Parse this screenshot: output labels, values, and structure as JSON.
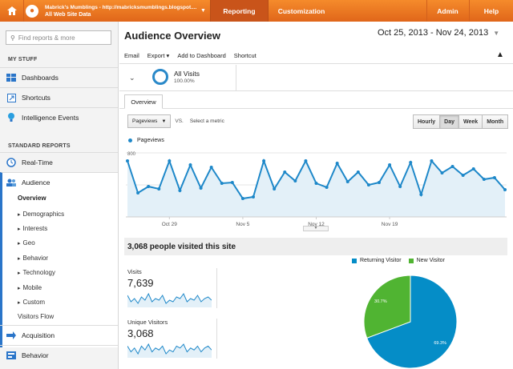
{
  "topbar": {
    "site_line1": "Mabrick's Mumblings - http://mabricksmumblings.blogspot....",
    "site_line2": "All Web Site Data",
    "nav": {
      "reporting": "Reporting",
      "customization": "Customization",
      "admin": "Admin",
      "help": "Help"
    },
    "accent": "#e8701f"
  },
  "sidebar": {
    "search_placeholder": "Find reports & more",
    "my_stuff": "MY STUFF",
    "dashboards": "Dashboards",
    "shortcuts": "Shortcuts",
    "intelligence": "Intelligence Events",
    "standard_reports": "STANDARD REPORTS",
    "realtime": "Real-Time",
    "audience": "Audience",
    "audience_items": {
      "overview": "Overview",
      "demographics": "Demographics",
      "interests": "Interests",
      "geo": "Geo",
      "behavior": "Behavior",
      "technology": "Technology",
      "mobile": "Mobile",
      "custom": "Custom",
      "visitors_flow": "Visitors Flow"
    },
    "acquisition": "Acquisition",
    "behavior": "Behavior"
  },
  "main": {
    "title": "Audience Overview",
    "date_range": "Oct 25, 2013 - Nov 24, 2013",
    "toolbar": {
      "email": "Email",
      "export": "Export",
      "add_dashboard": "Add to Dashboard",
      "shortcut": "Shortcut"
    },
    "segment": {
      "name": "All Visits",
      "percent": "100.00%"
    },
    "tab": "Overview",
    "metric": "Pageviews",
    "vs": "VS.",
    "select_metric": "Select a metric",
    "time_buttons": [
      "Hourly",
      "Day",
      "Week",
      "Month"
    ],
    "active_time": "Day",
    "summary": "3,068 people visited this site",
    "visits_label": "Visits",
    "visits_value": "7,639",
    "unique_label": "Unique Visitors",
    "unique_value": "3,068"
  },
  "chart_data": [
    {
      "type": "area",
      "series": [
        {
          "name": "Pageviews",
          "color": "#1e88c9",
          "values": [
            700,
            300,
            380,
            350,
            700,
            330,
            650,
            360,
            620,
            420,
            430,
            230,
            250,
            700,
            350,
            560,
            450,
            700,
            420,
            370,
            670,
            440,
            560,
            400,
            430,
            650,
            380,
            680,
            280,
            700,
            550,
            630,
            520,
            600,
            470,
            490,
            340
          ]
        }
      ],
      "x_ticks": [
        "Oct 29",
        "Nov 5",
        "Nov 12",
        "Nov 19"
      ],
      "y_ticks": [
        "800",
        "400"
      ],
      "ylim": [
        0,
        800
      ]
    },
    {
      "type": "pie",
      "series": [
        {
          "name": "Returning Visitor",
          "value": 69.3,
          "label": "69.3%",
          "color": "#058dc7"
        },
        {
          "name": "New Visitor",
          "value": 30.7,
          "label": "30.7%",
          "color": "#50b432"
        }
      ]
    }
  ],
  "sparklines": {
    "visits": [
      12,
      8,
      10,
      7,
      11,
      9,
      13,
      8,
      10,
      9,
      12,
      7,
      9,
      8,
      11,
      10,
      13,
      8,
      10,
      9,
      12,
      8,
      10,
      11,
      9
    ],
    "unique": [
      10,
      7,
      9,
      6,
      10,
      8,
      11,
      7,
      9,
      8,
      10,
      6,
      8,
      7,
      10,
      9,
      11,
      7,
      9,
      8,
      10,
      7,
      9,
      10,
      8
    ]
  }
}
